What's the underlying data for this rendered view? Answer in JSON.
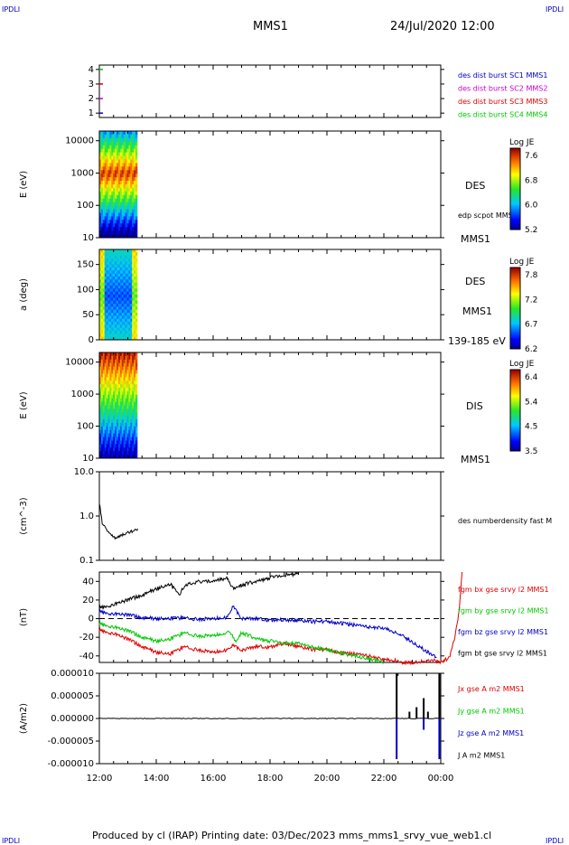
{
  "header": {
    "left_tag": "IPDLI",
    "right_tag": "IPDLI",
    "title": "MMS1",
    "datetime": "24/Jul/2020 12:00"
  },
  "footer": {
    "left_tag": "IPDLI",
    "right_tag": "IPDLI",
    "text": "Produced by cl (IRAP)   Printing date: 03/Dec/2023   mms_mms1_srvy_vue_web1.cl"
  },
  "colors": {
    "red": "#e00000",
    "green": "#00c800",
    "blue": "#0000c8",
    "magenta": "#c800c8",
    "black": "#000000"
  },
  "chart_data": [
    {
      "type": "scatter",
      "id": "burst",
      "ylabel": "",
      "yticks": [
        "1",
        "2",
        "3",
        "4"
      ],
      "ylim": [
        0.7,
        4.3
      ],
      "legend": [
        {
          "name": "des dist burst SC1 MMS1",
          "color": "#0000c8"
        },
        {
          "name": "des dist burst SC2 MMS2",
          "color": "#c800c8"
        },
        {
          "name": "des dist burst SC3 MMS3",
          "color": "#e00000"
        },
        {
          "name": "des dist burst SC4 MMS4",
          "color": "#00c800"
        }
      ]
    },
    {
      "type": "heatmap",
      "id": "des_energy",
      "ylabel": "E (eV)",
      "yticks": [
        "10",
        "100",
        "1000",
        "10000"
      ],
      "scale": "log",
      "x_range": [
        "12:00",
        "13:20"
      ],
      "right_labels": [
        "DES",
        "edp scpot MMS1",
        "MMS1"
      ],
      "colorbar": {
        "title": "Log JE",
        "ticks": [
          "7.6",
          "6.8",
          "6.0",
          "5.2"
        ]
      }
    },
    {
      "type": "heatmap",
      "id": "des_pitch",
      "ylabel": "a (deg)",
      "yticks": [
        "0",
        "50",
        "100",
        "150"
      ],
      "x_range": [
        "12:00",
        "13:20"
      ],
      "right_labels": [
        "DES",
        "MMS1",
        "139-185 eV"
      ],
      "colorbar": {
        "title": "Log JE",
        "ticks": [
          "7.8",
          "7.2",
          "6.7",
          "6.2"
        ]
      }
    },
    {
      "type": "heatmap",
      "id": "dis_energy",
      "ylabel": "E (eV)",
      "yticks": [
        "10",
        "100",
        "1000",
        "10000"
      ],
      "scale": "log",
      "x_range": [
        "12:00",
        "13:20"
      ],
      "right_labels": [
        "DIS",
        "MMS1"
      ],
      "colorbar": {
        "title": "Log JE",
        "ticks": [
          "6.4",
          "5.4",
          "4.5",
          "3.5"
        ]
      }
    },
    {
      "type": "line",
      "id": "density",
      "ylabel": "(cm^-3)",
      "yticks": [
        "0.1",
        "1.0",
        "10.0"
      ],
      "scale": "log",
      "series": [
        {
          "name": "des numberdensity fast M",
          "color": "#000000",
          "x": [
            0.0,
            0.05,
            0.1,
            0.2,
            0.3,
            0.4,
            0.5,
            0.6,
            0.7,
            0.8,
            0.9,
            1.0,
            1.1,
            1.2,
            1.3,
            1.35
          ],
          "y": [
            2.0,
            1.1,
            0.7,
            0.55,
            0.45,
            0.38,
            0.33,
            0.31,
            0.34,
            0.37,
            0.4,
            0.42,
            0.44,
            0.46,
            0.5,
            0.52
          ]
        }
      ]
    },
    {
      "type": "line",
      "id": "magnetic",
      "ylabel": "(nT)",
      "yticks": [
        "-40",
        "-20",
        "0",
        "20",
        "40"
      ],
      "ylim": [
        -47,
        50
      ],
      "series": [
        {
          "name": "fgm bx gse srvy l2 MMS1",
          "color": "#e00000",
          "x": [
            0,
            0.5,
            1,
            1.5,
            2,
            2.5,
            3,
            3.5,
            4,
            4.5,
            4.7,
            5,
            5.5,
            6,
            6.5,
            7,
            7.5,
            8,
            8.5,
            9,
            9.5,
            10,
            10.4,
            10.6,
            10.8,
            11,
            11.5,
            11.75,
            12,
            12.3,
            12.5,
            12.65,
            12.75
          ],
          "y": [
            -12,
            -16,
            -22,
            -30,
            -36,
            -38,
            -30,
            -34,
            -36,
            -34,
            -28,
            -34,
            -30,
            -31,
            -26,
            -30,
            -33,
            -33,
            -37,
            -38,
            -40,
            -44,
            -45,
            -47,
            -47,
            -47,
            -45,
            -45,
            -47,
            -42,
            -20,
            10,
            50
          ]
        },
        {
          "name": "fgm by gse srvy l2 MMS1",
          "color": "#00c800",
          "x": [
            0,
            0.5,
            1,
            1.5,
            2,
            2.5,
            3,
            3.5,
            4,
            4.4,
            4.6,
            4.8,
            5,
            5.5,
            6,
            6.5,
            7,
            7.5,
            8,
            8.5,
            9,
            9.5,
            10
          ],
          "y": [
            -5,
            -9,
            -13,
            -20,
            -24,
            -22,
            -15,
            -19,
            -18,
            -16,
            -14,
            -25,
            -15,
            -21,
            -24,
            -26,
            -27,
            -30,
            -34,
            -37,
            -40,
            -43,
            -47
          ]
        },
        {
          "name": "fgm bz gse srvy l2 MMS1",
          "color": "#0000c8",
          "x": [
            0,
            0.5,
            1,
            1.5,
            2,
            2.5,
            3,
            3.5,
            4,
            4.5,
            4.7,
            5,
            5.5,
            6,
            6.5,
            7,
            7.5,
            8,
            8.5,
            9,
            9.5,
            10,
            10.5,
            11,
            11.5,
            11.85
          ],
          "y": [
            8,
            5,
            4,
            1,
            0,
            0,
            1,
            -1,
            0,
            1,
            14,
            0,
            0,
            -2,
            -1,
            -2,
            -3,
            -3,
            -5,
            -7,
            -9,
            -10,
            -16,
            -25,
            -35,
            -42
          ]
        },
        {
          "name": "fgm bt gse srvy l2 MMS1",
          "color": "#000000",
          "x": [
            0,
            0.5,
            1,
            1.5,
            2,
            2.5,
            2.8,
            3,
            3.5,
            4,
            4.5,
            4.7,
            5,
            5.5,
            6,
            6.5,
            7
          ],
          "y": [
            12,
            15,
            20,
            25,
            32,
            37,
            25,
            36,
            40,
            40,
            44,
            32,
            36,
            40,
            44,
            47,
            48
          ]
        }
      ]
    },
    {
      "type": "line",
      "id": "current",
      "ylabel": "(A/m2)",
      "yticks": [
        "-0.000010",
        "-0.000005",
        "0.000000",
        "0.000005",
        "0.000010"
      ],
      "ylim": [
        -1e-05,
        1e-05
      ],
      "xticks": [
        "12:00",
        "14:00",
        "16:00",
        "18:00",
        "20:00",
        "22:00",
        "00:00"
      ],
      "series": [
        {
          "name": "Jx gse A m2 MMS1",
          "color": "#e00000"
        },
        {
          "name": "Jy gse A m2 MMS1",
          "color": "#00c800"
        },
        {
          "name": "Jz gse A m2 MMS1",
          "color": "#0000c8",
          "x": [
            10.35,
            10.45,
            11.4,
            11.95
          ],
          "y": [
            0,
            -9e-06,
            -2.5e-06,
            -9e-06
          ]
        },
        {
          "name": "J A m2 MMS1",
          "color": "#000000",
          "x": [
            10.45,
            10.9,
            11.15,
            11.4,
            11.55,
            11.95
          ],
          "y": [
            1e-05,
            1.5e-06,
            2.5e-06,
            4.5e-06,
            1.5e-06,
            1e-05
          ]
        }
      ]
    }
  ]
}
